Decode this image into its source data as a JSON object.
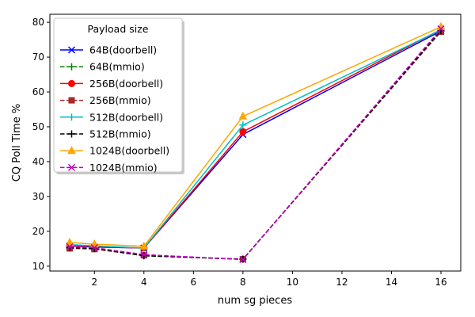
{
  "chart_data": {
    "type": "line",
    "title": "",
    "xlabel": "num sg pieces",
    "ylabel": "CQ Poll Time %",
    "x": [
      1,
      2,
      4,
      8,
      16
    ],
    "xlim": [
      0.2,
      16.8
    ],
    "ylim": [
      8.6,
      82.3
    ],
    "xticks": [
      2,
      4,
      6,
      8,
      10,
      12,
      14,
      16
    ],
    "yticks": [
      10,
      20,
      30,
      40,
      50,
      60,
      70,
      80
    ],
    "grid": false,
    "legend": {
      "title": "Payload size",
      "placement": "upper-left"
    },
    "series": [
      {
        "name": "64B(doorbell)",
        "values": [
          15.8,
          15.5,
          15.2,
          47.8,
          77.5
        ],
        "color": "#0000ff",
        "linestyle": "solid",
        "marker": "x"
      },
      {
        "name": "64B(mmio)",
        "values": [
          15.2,
          15.0,
          13.0,
          12.0,
          77.5
        ],
        "color": "#008000",
        "linestyle": "dashed",
        "marker": "+"
      },
      {
        "name": "256B(doorbell)",
        "values": [
          16.0,
          15.7,
          15.2,
          48.6,
          77.9
        ],
        "color": "#ff0000",
        "linestyle": "solid",
        "marker": "circle"
      },
      {
        "name": "256B(mmio)",
        "values": [
          15.1,
          14.9,
          13.1,
          12.0,
          77.3
        ],
        "color": "#a52a2a",
        "linestyle": "dashed",
        "marker": "square"
      },
      {
        "name": "512B(doorbell)",
        "values": [
          16.2,
          15.8,
          15.2,
          50.5,
          77.8
        ],
        "color": "#00bfbf",
        "linestyle": "solid",
        "marker": "+"
      },
      {
        "name": "512B(mmio)",
        "values": [
          15.3,
          15.1,
          13.0,
          12.0,
          77.6
        ],
        "color": "#000000",
        "linestyle": "dashed",
        "marker": "+"
      },
      {
        "name": "1024B(doorbell)",
        "values": [
          16.8,
          16.3,
          15.7,
          53.0,
          78.7
        ],
        "color": "#ffa500",
        "linestyle": "solid",
        "marker": "triangle"
      },
      {
        "name": "1024B(mmio)",
        "values": [
          15.6,
          15.3,
          13.3,
          11.9,
          78.1
        ],
        "color": "#bf00bf",
        "linestyle": "dashed",
        "marker": "x"
      }
    ]
  }
}
